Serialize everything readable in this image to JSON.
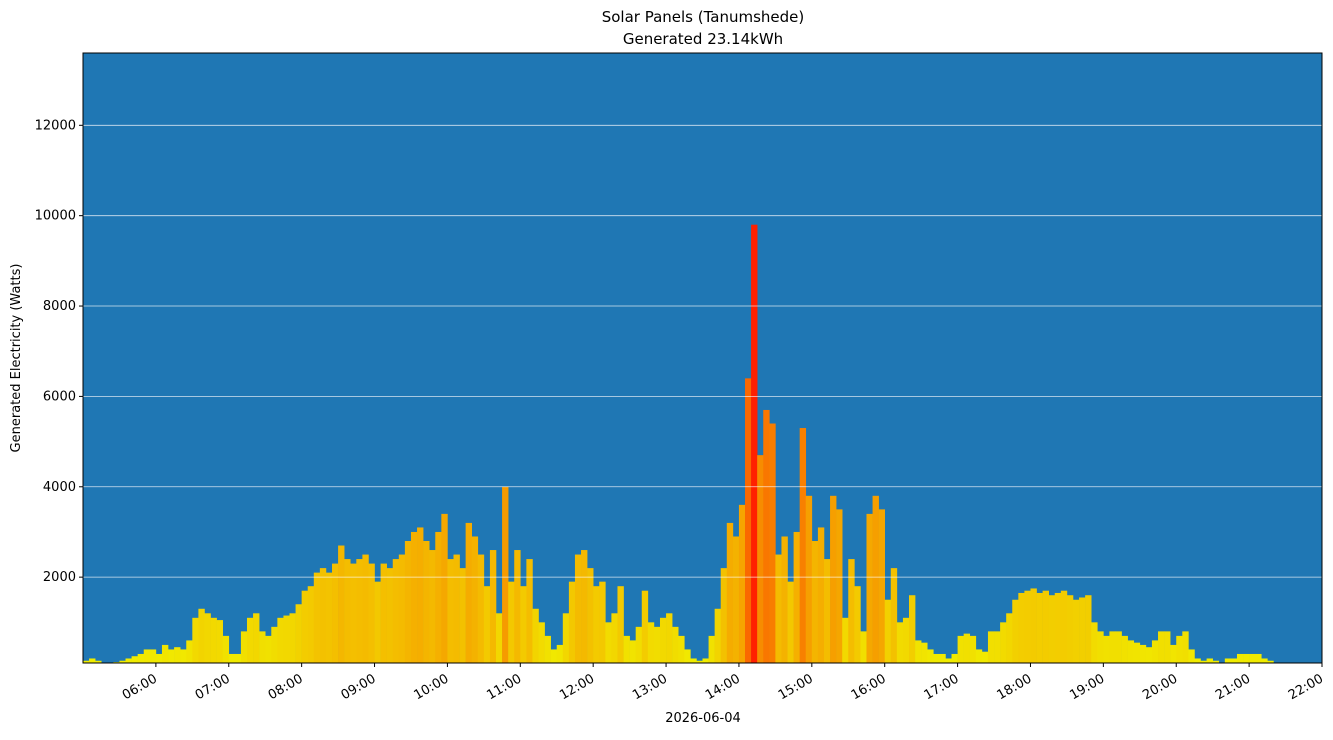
{
  "chart_data": {
    "type": "bar",
    "title": "Solar Panels (Tanumshede)",
    "subtitle": "Generated 23.14kWh",
    "x_label": "2026-06-04",
    "y_label": "Generated Electricity (Watts)",
    "background": "#1f77b4",
    "grid": true,
    "colormap": [
      "#f0f000",
      "#ff2000"
    ],
    "xlim": [
      "05:00",
      "22:00"
    ],
    "xticks": [
      "06:00",
      "07:00",
      "08:00",
      "09:00",
      "10:00",
      "11:00",
      "12:00",
      "13:00",
      "14:00",
      "15:00",
      "16:00",
      "17:00",
      "18:00",
      "19:00",
      "20:00",
      "21:00",
      "22:00"
    ],
    "ylim": [
      100,
      13600
    ],
    "yticks": [
      2000,
      4000,
      6000,
      8000,
      10000,
      12000
    ],
    "x": [
      "05:00",
      "05:05",
      "05:10",
      "05:15",
      "05:20",
      "05:25",
      "05:30",
      "05:35",
      "05:40",
      "05:45",
      "05:50",
      "05:55",
      "06:00",
      "06:05",
      "06:10",
      "06:15",
      "06:20",
      "06:25",
      "06:30",
      "06:35",
      "06:40",
      "06:45",
      "06:50",
      "06:55",
      "07:00",
      "07:05",
      "07:10",
      "07:15",
      "07:20",
      "07:25",
      "07:30",
      "07:35",
      "07:40",
      "07:45",
      "07:50",
      "07:55",
      "08:00",
      "08:05",
      "08:10",
      "08:15",
      "08:20",
      "08:25",
      "08:30",
      "08:35",
      "08:40",
      "08:45",
      "08:50",
      "08:55",
      "09:00",
      "09:05",
      "09:10",
      "09:15",
      "09:20",
      "09:25",
      "09:30",
      "09:35",
      "09:40",
      "09:45",
      "09:50",
      "09:55",
      "10:00",
      "10:05",
      "10:10",
      "10:15",
      "10:20",
      "10:25",
      "10:30",
      "10:35",
      "10:40",
      "10:45",
      "10:50",
      "10:55",
      "11:00",
      "11:05",
      "11:10",
      "11:15",
      "11:20",
      "11:25",
      "11:30",
      "11:35",
      "11:40",
      "11:45",
      "11:50",
      "11:55",
      "12:00",
      "12:05",
      "12:10",
      "12:15",
      "12:20",
      "12:25",
      "12:30",
      "12:35",
      "12:40",
      "12:45",
      "12:50",
      "12:55",
      "13:00",
      "13:05",
      "13:10",
      "13:15",
      "13:20",
      "13:25",
      "13:30",
      "13:35",
      "13:40",
      "13:45",
      "13:50",
      "13:55",
      "14:00",
      "14:05",
      "14:10",
      "14:15",
      "14:20",
      "14:25",
      "14:30",
      "14:35",
      "14:40",
      "14:45",
      "14:50",
      "14:55",
      "15:00",
      "15:05",
      "15:10",
      "15:15",
      "15:20",
      "15:25",
      "15:30",
      "15:35",
      "15:40",
      "15:45",
      "15:50",
      "15:55",
      "16:00",
      "16:05",
      "16:10",
      "16:15",
      "16:20",
      "16:25",
      "16:30",
      "16:35",
      "16:40",
      "16:45",
      "16:50",
      "16:55",
      "17:00",
      "17:05",
      "17:10",
      "17:15",
      "17:20",
      "17:25",
      "17:30",
      "17:35",
      "17:40",
      "17:45",
      "17:50",
      "17:55",
      "18:00",
      "18:05",
      "18:10",
      "18:15",
      "18:20",
      "18:25",
      "18:30",
      "18:35",
      "18:40",
      "18:45",
      "18:50",
      "18:55",
      "19:00",
      "19:05",
      "19:10",
      "19:15",
      "19:20",
      "19:25",
      "19:30",
      "19:35",
      "19:40",
      "19:45",
      "19:50",
      "19:55",
      "20:00",
      "20:05",
      "20:10",
      "20:15",
      "20:20",
      "20:25",
      "20:30",
      "20:35",
      "20:40",
      "20:45",
      "20:50",
      "20:55",
      "21:00",
      "21:05",
      "21:10",
      "21:15",
      "21:20",
      "21:25",
      "21:30",
      "21:35"
    ],
    "values": [
      150,
      200,
      150,
      100,
      100,
      120,
      150,
      200,
      250,
      300,
      400,
      400,
      300,
      500,
      400,
      450,
      400,
      600,
      1100,
      1300,
      1200,
      1100,
      1050,
      700,
      300,
      300,
      800,
      1100,
      1200,
      800,
      700,
      900,
      1100,
      1150,
      1200,
      1400,
      1700,
      1800,
      2100,
      2200,
      2100,
      2300,
      2700,
      2400,
      2300,
      2400,
      2500,
      2300,
      1900,
      2300,
      2200,
      2400,
      2500,
      2800,
      3000,
      3100,
      2800,
      2600,
      3000,
      3400,
      2400,
      2500,
      2200,
      3200,
      2900,
      2500,
      1800,
      2600,
      1200,
      4000,
      1900,
      2600,
      1800,
      2400,
      1300,
      1000,
      700,
      400,
      500,
      1200,
      1900,
      2500,
      2600,
      2200,
      1800,
      1900,
      1000,
      1200,
      1800,
      700,
      600,
      900,
      1700,
      1000,
      900,
      1100,
      1200,
      900,
      700,
      400,
      200,
      150,
      200,
      700,
      1300,
      2200,
      3200,
      2900,
      3600,
      6400,
      9800,
      4700,
      5700,
      5400,
      2500,
      2900,
      1900,
      3000,
      5300,
      3800,
      2800,
      3100,
      2400,
      3800,
      3500,
      1100,
      2400,
      1800,
      800,
      3400,
      3800,
      3500,
      1500,
      2200,
      1000,
      1100,
      1600,
      600,
      550,
      400,
      300,
      300,
      200,
      300,
      700,
      750,
      700,
      400,
      350,
      800,
      800,
      1000,
      1200,
      1500,
      1650,
      1700,
      1750,
      1650,
      1700,
      1600,
      1650,
      1700,
      1600,
      1500,
      1550,
      1600,
      1000,
      800,
      700,
      800,
      800,
      700,
      600,
      550,
      500,
      450,
      600,
      800,
      800,
      500,
      700,
      800,
      400,
      200,
      150,
      200,
      150,
      100,
      200,
      200,
      300,
      300,
      300,
      300,
      200,
      150,
      100,
      100,
      100,
      100
    ]
  }
}
